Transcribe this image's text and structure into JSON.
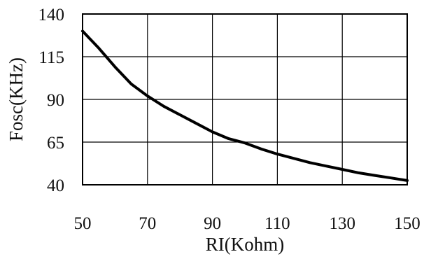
{
  "chart_data": {
    "type": "line",
    "title": "",
    "xlabel": "RI(Kohm)",
    "ylabel": "Fosc(KHz)",
    "xlim": [
      50,
      150
    ],
    "ylim": [
      40,
      140
    ],
    "xticks": [
      50,
      70,
      90,
      110,
      130,
      150
    ],
    "yticks": [
      40,
      65,
      90,
      115,
      140
    ],
    "x_tick_labels": [
      "50",
      "70",
      "90",
      "110",
      "130",
      "150"
    ],
    "y_tick_labels": [
      "40",
      "65",
      "90",
      "115",
      "140"
    ],
    "grid": true,
    "legend": "none",
    "series": [
      {
        "color": "#000000",
        "x": [
          50,
          55,
          60,
          65,
          70,
          75,
          80,
          85,
          90,
          95,
          100,
          105,
          110,
          115,
          120,
          125,
          130,
          135,
          140,
          145,
          150
        ],
        "y": [
          130,
          120,
          109,
          99,
          92,
          86,
          81,
          76,
          71,
          67,
          64.5,
          61,
          58,
          55.5,
          53,
          51,
          49,
          47,
          45.5,
          44,
          42.5
        ]
      }
    ]
  }
}
